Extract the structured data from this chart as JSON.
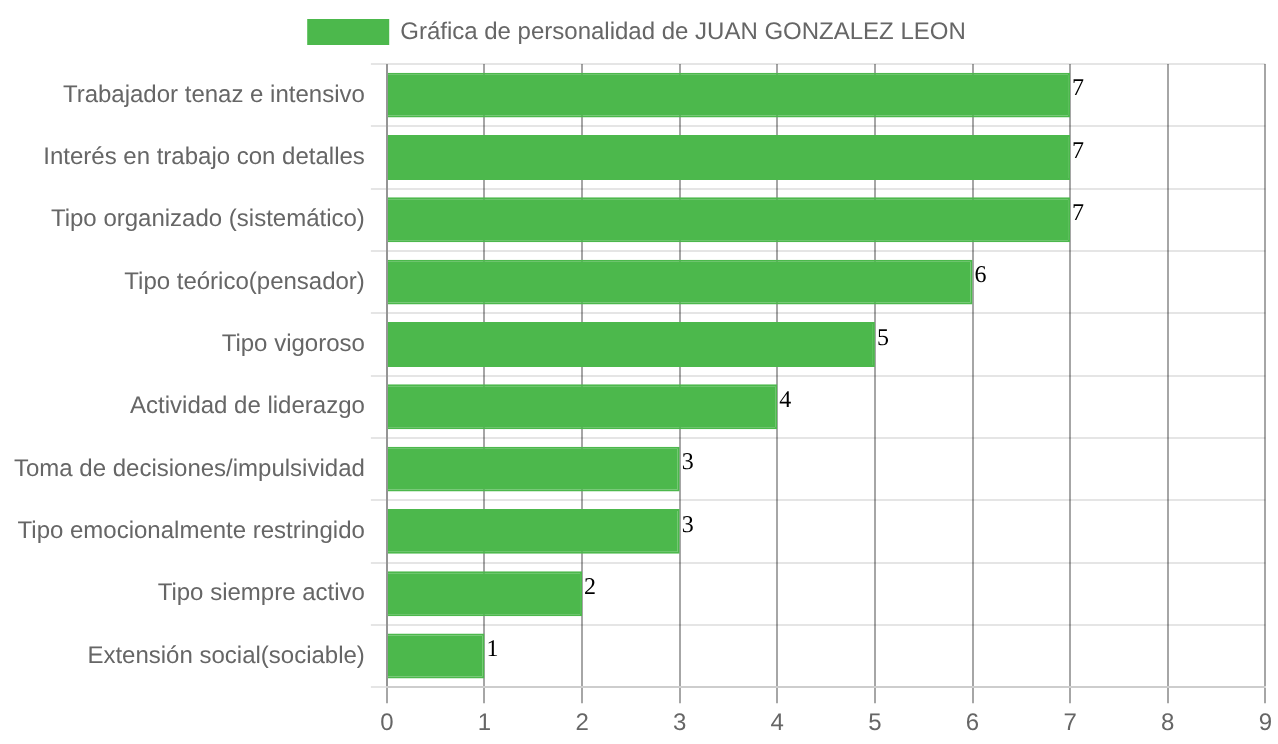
{
  "chart_data": {
    "type": "bar",
    "orientation": "horizontal",
    "categories": [
      "Trabajador tenaz e intensivo",
      "Interés en trabajo con detalles",
      "Tipo organizado (sistemático)",
      "Tipo teórico(pensador)",
      "Tipo vigoroso",
      "Actividad de liderazgo",
      "Toma de decisiones/impulsividad",
      "Tipo emocionalmente restringido",
      "Tipo siempre activo",
      "Extensión social(sociable)"
    ],
    "series": [
      {
        "name": "Gráfica de personalidad de JUAN GONZALEZ LEON",
        "color": "#4cb84c",
        "values": [
          7,
          7,
          7,
          6,
          5,
          4,
          3,
          3,
          2,
          1
        ]
      }
    ],
    "xlim": [
      0,
      9
    ],
    "xticks": [
      0,
      1,
      2,
      3,
      4,
      5,
      6,
      7,
      8,
      9
    ],
    "grid": true,
    "legend": "top",
    "data_labels": true
  }
}
